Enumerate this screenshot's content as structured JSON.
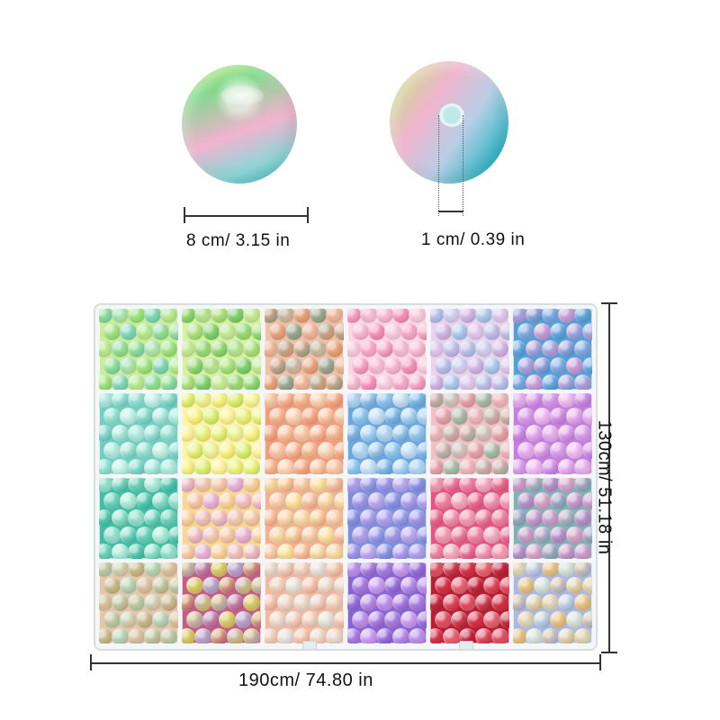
{
  "product": {
    "bead_diameter_label": "8 cm/ 3.15 in",
    "hole_diameter_label": "1 cm/ 0.39 in",
    "box_width_label": "190cm/ 74.80  in",
    "box_height_label": "130cm/ 51.18  in"
  },
  "tray": {
    "rows": 4,
    "columns": 6,
    "compartments": [
      {
        "colors": [
          "#9be37a",
          "#7fd6b5",
          "#c8ee9a"
        ]
      },
      {
        "colors": [
          "#a9e07a",
          "#7dd06a",
          "#d7f1a1"
        ]
      },
      {
        "colors": [
          "#e8a17a",
          "#9aa58e",
          "#f0c0a7"
        ]
      },
      {
        "colors": [
          "#f7b6cf",
          "#f48fb5",
          "#fbd7e4"
        ]
      },
      {
        "colors": [
          "#cfb4e3",
          "#a8c7ea",
          "#ebd2ef"
        ]
      },
      {
        "colors": [
          "#7aa7e0",
          "#c79ad8",
          "#4fa1d8"
        ]
      },
      {
        "colors": [
          "#8fe0cf",
          "#bff1e6",
          "#6fd0c1"
        ]
      },
      {
        "colors": [
          "#f7f27a",
          "#d7f06b",
          "#fff3a8"
        ]
      },
      {
        "colors": [
          "#f7b38a",
          "#fcd0b1",
          "#f59b7a"
        ]
      },
      {
        "colors": [
          "#8cc4ef",
          "#c2def5",
          "#6ba8df"
        ]
      },
      {
        "colors": [
          "#e5a0a8",
          "#a7b9a6",
          "#f1c1c6"
        ]
      },
      {
        "colors": [
          "#d79be9",
          "#f0b8f0",
          "#c47ee0"
        ]
      },
      {
        "colors": [
          "#66d1b8",
          "#a9ead8",
          "#3fbfa4"
        ]
      },
      {
        "colors": [
          "#f7c6a5",
          "#e7b0d6",
          "#f9d88e"
        ]
      },
      {
        "colors": [
          "#f7c9a3",
          "#fbe09a",
          "#f5b08f"
        ]
      },
      {
        "colors": [
          "#9c94e8",
          "#b8a6ef",
          "#7c8fe0"
        ]
      },
      {
        "colors": [
          "#f07fa0",
          "#f3a7bd",
          "#e45585"
        ]
      },
      {
        "colors": [
          "#b48fc7",
          "#d7a1c8",
          "#7fb4b6"
        ]
      },
      {
        "colors": [
          "#c7b78a",
          "#b6d2b2",
          "#e6c6a8"
        ]
      },
      {
        "colors": [
          "#d8c75f",
          "#b9a0c8",
          "#c65b8a"
        ]
      },
      {
        "colors": [
          "#f1cdb7",
          "#e7dfd7",
          "#f4b79f"
        ]
      },
      {
        "colors": [
          "#a67ae0",
          "#c89af0",
          "#8a63d4"
        ]
      },
      {
        "colors": [
          "#d63046",
          "#e7606f",
          "#b51e33"
        ]
      },
      {
        "colors": [
          "#e5c07f",
          "#d3e1d7",
          "#a9b8e6"
        ]
      }
    ]
  }
}
